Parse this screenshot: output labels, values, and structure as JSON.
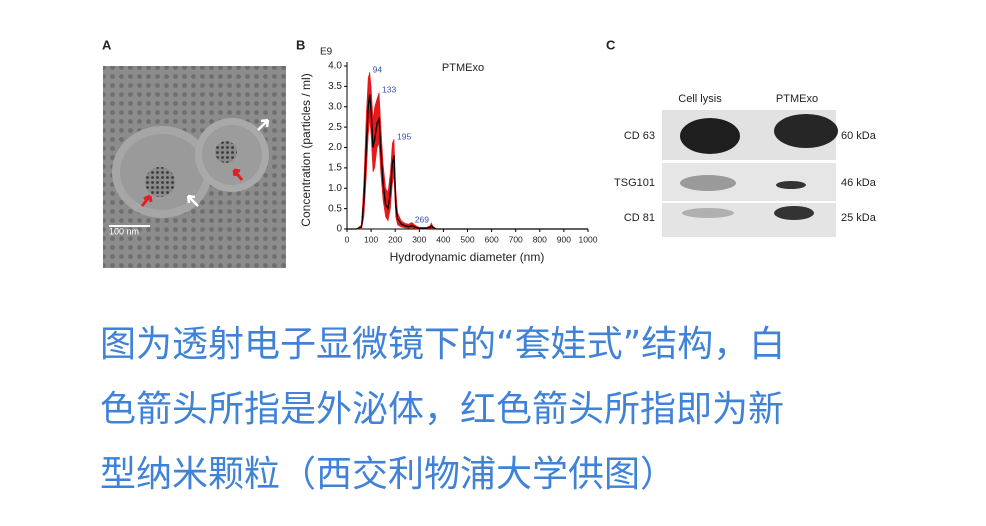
{
  "panel_a": {
    "label": "A",
    "scale_bar": "100 nm"
  },
  "chart_data": {
    "type": "line",
    "panel_label": "B",
    "title": "PTMExo",
    "y_multiplier": "E9",
    "y_label": "Concentration (particles / ml)",
    "x_label": "Hydrodynamic diameter (nm)",
    "xlim": [
      0,
      1000
    ],
    "ylim": [
      0,
      4
    ],
    "xticks": [
      0,
      100,
      200,
      300,
      400,
      500,
      600,
      700,
      800,
      900,
      1000
    ],
    "yticks": [
      0,
      0.5,
      {
        "value": 1,
        "label": "1.0"
      },
      1.5,
      {
        "value": 2,
        "label": "2.0"
      },
      2.5,
      {
        "value": 3,
        "label": "3.0"
      },
      3.5,
      {
        "value": 4,
        "label": "4.0"
      }
    ],
    "grid": false,
    "x": [
      0,
      40,
      60,
      70,
      80,
      88,
      94,
      100,
      108,
      115,
      125,
      133,
      140,
      150,
      160,
      170,
      180,
      188,
      195,
      202,
      210,
      225,
      240,
      255,
      269,
      285,
      300,
      330,
      345,
      350,
      355,
      370,
      400,
      500,
      1000
    ],
    "series": [
      {
        "color": "#000000",
        "values": [
          0,
          0,
          0.05,
          0.7,
          2.0,
          3.0,
          3.3,
          2.9,
          2.0,
          2.2,
          2.6,
          2.7,
          2.0,
          1.1,
          0.6,
          0.5,
          0.9,
          1.6,
          1.8,
          0.6,
          0.25,
          0.12,
          0.08,
          0.06,
          0.08,
          0.04,
          0.02,
          0.02,
          0.04,
          0.08,
          0.04,
          0,
          0,
          0,
          0
        ]
      }
    ],
    "band": {
      "color": "#e41a1c",
      "upper": [
        0,
        0,
        0.1,
        1.2,
        2.8,
        3.7,
        3.85,
        3.5,
        2.7,
        3.0,
        3.2,
        3.35,
        2.6,
        1.6,
        1.0,
        0.9,
        1.4,
        2.1,
        2.2,
        1.0,
        0.4,
        0.2,
        0.14,
        0.12,
        0.16,
        0.08,
        0.04,
        0.04,
        0.08,
        0.15,
        0.08,
        0,
        0,
        0,
        0
      ],
      "lower": [
        0,
        0,
        0,
        0.3,
        1.3,
        2.3,
        2.7,
        2.3,
        1.4,
        1.5,
        2.0,
        2.1,
        1.4,
        0.7,
        0.3,
        0.2,
        0.5,
        1.1,
        1.3,
        0.3,
        0.1,
        0.05,
        0.03,
        0.02,
        0.03,
        0.01,
        0,
        0,
        0.01,
        0.02,
        0.01,
        0,
        0,
        0,
        0
      ]
    },
    "peaks": [
      94,
      133,
      195,
      269
    ],
    "peak_color": "#3a4fb0"
  },
  "panel_c": {
    "label": "C",
    "lanes": [
      "Cell lysis",
      "PTMExo"
    ],
    "rows": [
      {
        "marker": "CD 63",
        "size": "60 kDa"
      },
      {
        "marker": "TSG101",
        "size": "46 kDa"
      },
      {
        "marker": "CD 81",
        "size": "25 kDa"
      }
    ]
  },
  "caption": {
    "lines": [
      "图为透射电子显微镜下的“套娃式”结构，白",
      "色箭头所指是外泌体，红色箭头所指即为新",
      "型纳米颗粒（西交利物浦大学供图）"
    ]
  }
}
